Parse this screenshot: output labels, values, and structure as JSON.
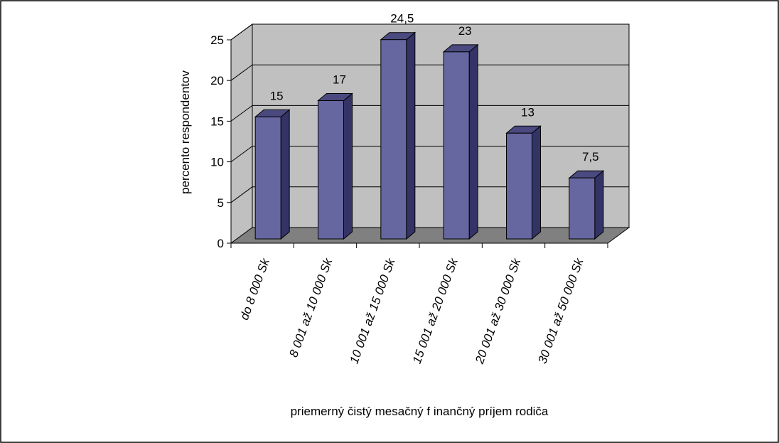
{
  "chart_data": {
    "type": "bar",
    "title": "",
    "xlabel": "priemerný čistý mesačný f inančný príjem rodiča",
    "ylabel": "percento respondentov",
    "categories": [
      "do 8 000 Sk",
      "8 001 až 10 000 Sk",
      "10 001 až 15 000 Sk",
      "15 001 až 20 000 Sk",
      "20 001 až 30 000 Sk",
      "30 001 až 50 000 Sk"
    ],
    "values": [
      15,
      17,
      24.5,
      23,
      13,
      7.5
    ],
    "data_labels": [
      "15",
      "17",
      "24,5",
      "23",
      "13",
      "7,5"
    ],
    "y_ticks": [
      0,
      5,
      10,
      15,
      20,
      25
    ],
    "ylim": [
      0,
      25
    ],
    "grid": true,
    "legend": "none",
    "style": "3d-column",
    "colors": {
      "bar_front": "#6666a0",
      "bar_side": "#333366",
      "bar_top": "#4a4a80",
      "wall": "#c0c0c0",
      "floor": "#808080",
      "gridline": "#000000"
    }
  }
}
